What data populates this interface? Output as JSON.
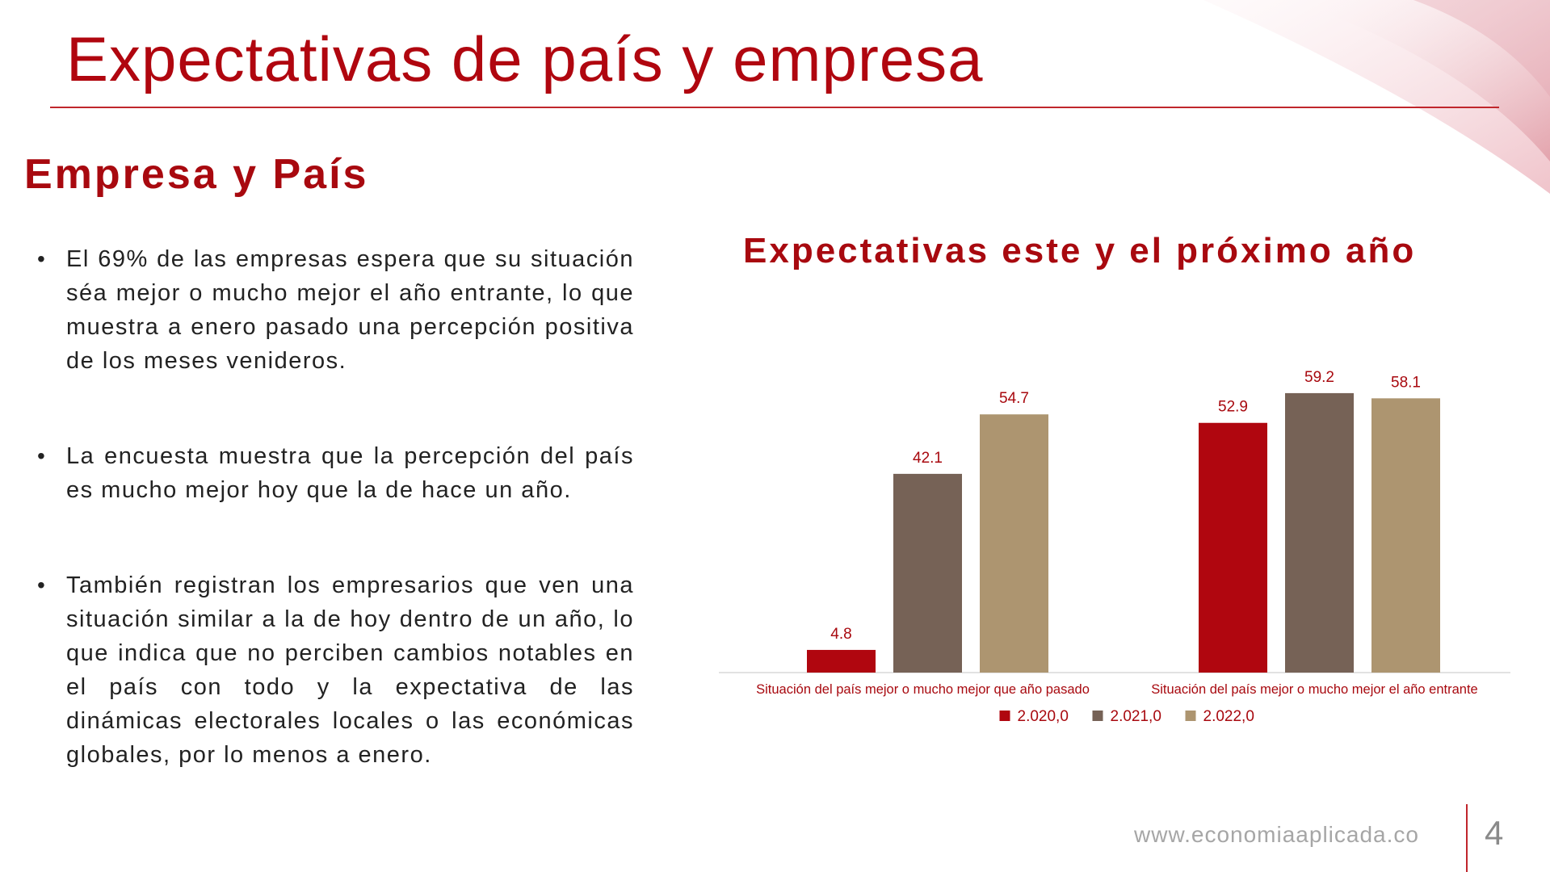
{
  "slide": {
    "title": "Expectativas de país y empresa",
    "section_title": "Empresa y País",
    "bullets": [
      "El 69% de las empresas espera que su situación séa mejor o mucho mejor el año entrante, lo que muestra a enero pasado una percepción positiva de los meses venideros.",
      "La encuesta muestra que la percepción del país es mucho mejor hoy que la de hace un año.",
      "También registran los empresarios que ven una situación similar a la de hoy dentro de un año, lo que indica que no perciben cambios notables en el país con todo y la expectativa de las dinámicas electorales locales o las económicas globales, por lo menos a enero."
    ],
    "bullet_symbol": "•",
    "footer_url": "www.economiaaplicada.co",
    "page_number": "4"
  },
  "chart_data": {
    "type": "bar",
    "title": "Expectativas este y el próximo año",
    "categories": [
      "Situación del país mejor o mucho mejor que año pasado",
      "Situación del país mejor o mucho mejor el año entrante"
    ],
    "series": [
      {
        "name": "2.020,0",
        "values": [
          4.8,
          52.9
        ],
        "color": "#b0060f"
      },
      {
        "name": "2.021,0",
        "values": [
          42.1,
          59.2
        ],
        "color": "#766256"
      },
      {
        "name": "2.022,0",
        "values": [
          54.7,
          58.1
        ],
        "color": "#ad9570"
      }
    ],
    "ylim": [
      0,
      65
    ],
    "grid": false,
    "legend_position": "bottom",
    "data_label_color": "#a8090f"
  }
}
